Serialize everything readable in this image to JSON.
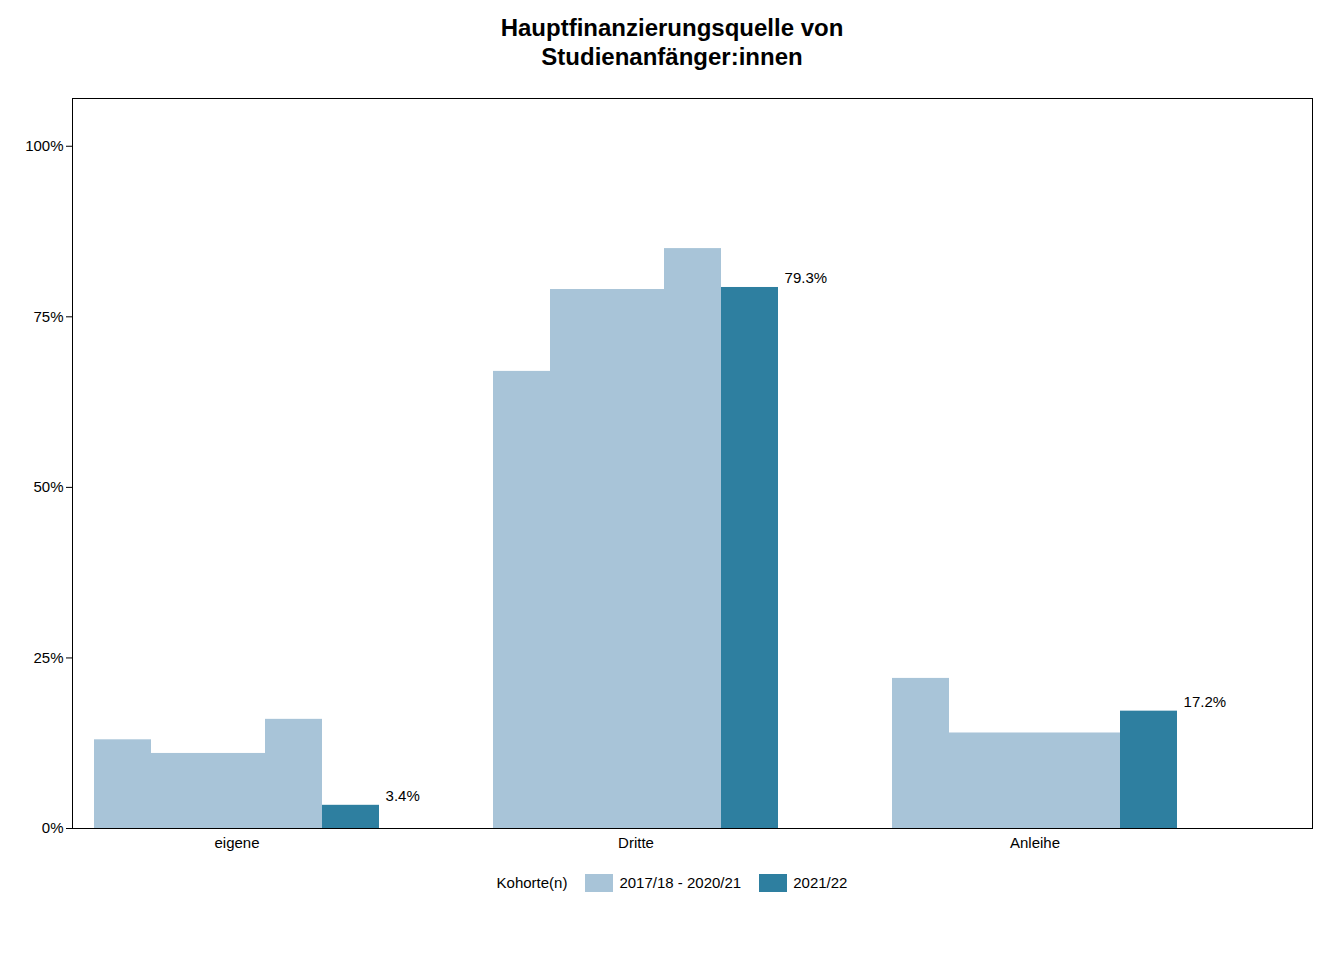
{
  "chart_data": {
    "type": "bar",
    "title": "Hauptfinanzierungsquelle von\nStudienanfänger:innen",
    "categories": [
      "eigene",
      "Dritte",
      "Anleihe"
    ],
    "series": [
      {
        "name": "2017/18 - 2020/21",
        "color": "#a8c4d8",
        "values": [
          [
            13.0,
            11.0,
            11.0,
            16.0
          ],
          [
            67.0,
            79.0,
            79.0,
            85.0
          ],
          [
            22.0,
            14.0,
            14.0,
            14.0
          ]
        ]
      },
      {
        "name": "2021/22",
        "color": "#2e7fa0",
        "values": [
          3.4,
          79.3,
          17.2
        ],
        "value_labels": [
          "3.4%",
          "79.3%",
          "17.2%"
        ],
        "data_labels": true
      }
    ],
    "legend_title": "Kohorte(n)",
    "legend": "bottom",
    "ylim": [
      0,
      107
    ],
    "yticks": [
      {
        "value": 0,
        "label": "0%"
      },
      {
        "value": 25,
        "label": "25%"
      },
      {
        "value": 50,
        "label": "50%"
      },
      {
        "value": 75,
        "label": "75%"
      },
      {
        "value": 100,
        "label": "100%"
      }
    ],
    "grid": false
  }
}
